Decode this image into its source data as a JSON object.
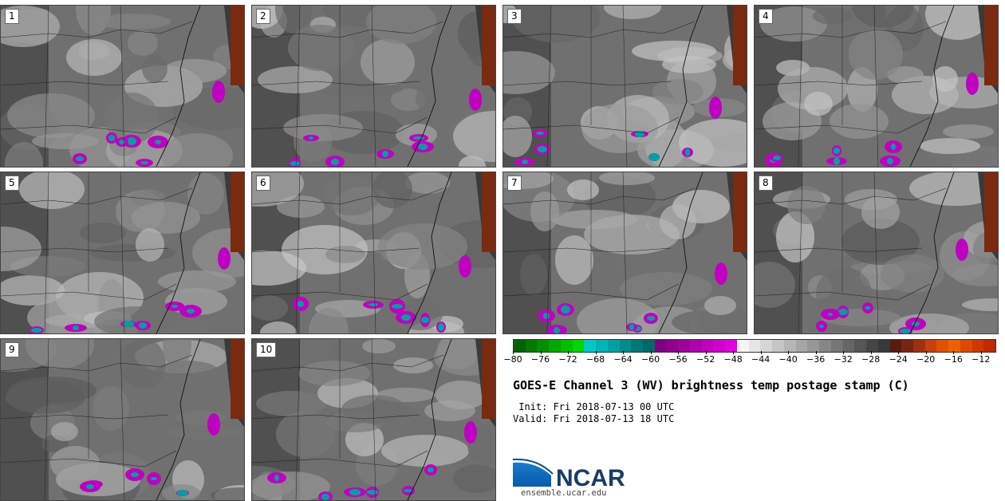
{
  "panels": [
    {
      "label": "1"
    },
    {
      "label": "2"
    },
    {
      "label": "3"
    },
    {
      "label": "4"
    },
    {
      "label": "5"
    },
    {
      "label": "6"
    },
    {
      "label": "7"
    },
    {
      "label": "8"
    },
    {
      "label": "9"
    },
    {
      "label": "10"
    }
  ],
  "colorbar": {
    "min": -80,
    "max": -10,
    "ticks": [
      "−80",
      "−76",
      "−72",
      "−68",
      "−64",
      "−60",
      "−56",
      "−52",
      "−48",
      "−44",
      "−40",
      "−36",
      "−32",
      "−28",
      "−24",
      "−20",
      "−16",
      "−12"
    ],
    "tick_values": [
      -80,
      -76,
      -72,
      -68,
      -64,
      -60,
      -56,
      -52,
      -48,
      -44,
      -40,
      -36,
      -32,
      -28,
      -24,
      -20,
      -16,
      -12
    ],
    "colors": [
      "#006400",
      "#007a00",
      "#009000",
      "#00a800",
      "#00c000",
      "#00d800",
      "#00c8c8",
      "#00b4b4",
      "#00a0a0",
      "#008c8c",
      "#007878",
      "#006868",
      "#800080",
      "#900090",
      "#a000a0",
      "#b000b0",
      "#c000c0",
      "#d000d0",
      "#e000e0",
      "#f5f5f5",
      "#e6e6e6",
      "#d6d6d6",
      "#c6c6c6",
      "#b6b6b6",
      "#a6a6a6",
      "#969696",
      "#868686",
      "#767676",
      "#666666",
      "#565656",
      "#464646",
      "#383838",
      "#5a1a10",
      "#7a2410",
      "#a03010",
      "#c84010",
      "#e05000",
      "#f06000",
      "#e04800",
      "#d03800",
      "#c02800"
    ]
  },
  "title": "GOES-E Channel 3 (WV) brightness temp postage stamp (C)",
  "init_text": " Init: Fri 2018-07-13 00 UTC",
  "valid_text": "Valid: Fri 2018-07-13 18 UTC",
  "logo_text": "NCAR",
  "site_text": "ensemble.ucar.edu"
}
